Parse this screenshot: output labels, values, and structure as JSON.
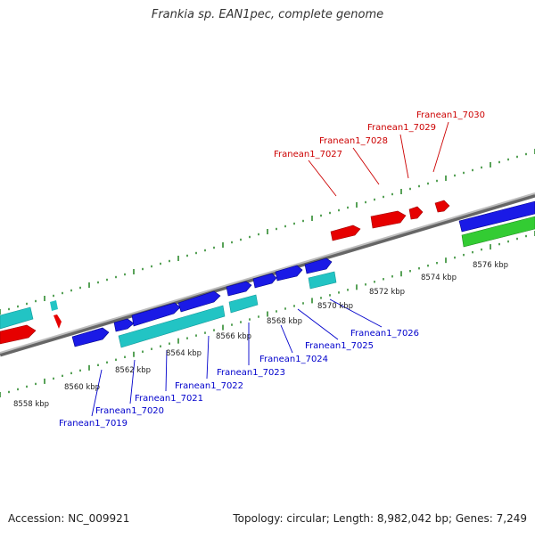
{
  "title": "Frankia sp. EAN1pec, complete genome",
  "footer": {
    "accession": "Accession: NC_009921",
    "summary": "Topology: circular; Length: 8,982,042 bp; Genes: 7,249"
  },
  "colors": {
    "backbone": "#8c8c8c",
    "tick": "#2e8b2e",
    "top_label": "#cc0000",
    "bottom_label": "#0000cc",
    "red_feature": "#e60000",
    "blue_feature": "#1a1ae6",
    "cyan_feature": "#22c4c4",
    "green_feature": "#33cc33"
  },
  "kbp_labels": [
    "8558 kbp",
    "8560 kbp",
    "8562 kbp",
    "8564 kbp",
    "8566 kbp",
    "8568 kbp",
    "8570 kbp",
    "8572 kbp",
    "8574 kbp",
    "8576 kbp"
  ],
  "top_gene_labels": [
    "Franean1_7027",
    "Franean1_7028",
    "Franean1_7029",
    "Franean1_7030"
  ],
  "bottom_gene_labels": [
    "Franean1_7019",
    "Franean1_7020",
    "Franean1_7021",
    "Franean1_7022",
    "Franean1_7023",
    "Franean1_7024",
    "Franean1_7025",
    "Franean1_7026"
  ]
}
